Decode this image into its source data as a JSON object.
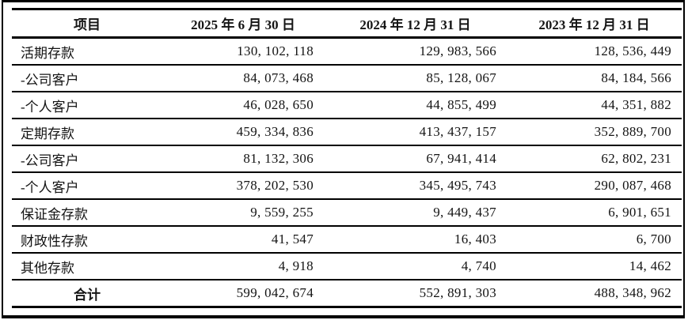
{
  "table": {
    "columns": [
      "项目",
      "2025 年 6 月 30 日",
      "2024 年 12 月 31 日",
      "2023 年 12 月 31 日"
    ],
    "rows": [
      {
        "label": "活期存款",
        "values": [
          "130, 102, 118",
          "129, 983, 566",
          "128, 536, 449"
        ]
      },
      {
        "label": "-公司客户",
        "values": [
          "84, 073, 468",
          "85, 128, 067",
          "84, 184, 566"
        ]
      },
      {
        "label": "-个人客户",
        "values": [
          "46, 028, 650",
          "44, 855, 499",
          "44, 351, 882"
        ]
      },
      {
        "label": "定期存款",
        "values": [
          "459, 334, 836",
          "413, 437, 157",
          "352, 889, 700"
        ]
      },
      {
        "label": "-公司客户",
        "values": [
          "81, 132, 306",
          "67, 941, 414",
          "62, 802, 231"
        ]
      },
      {
        "label": "-个人客户",
        "values": [
          "378, 202, 530",
          "345, 495, 743",
          "290, 087, 468"
        ]
      },
      {
        "label": "保证金存款",
        "values": [
          "9, 559, 255",
          "9, 449, 437",
          "6, 901, 651"
        ]
      },
      {
        "label": "财政性存款",
        "values": [
          "41, 547",
          "16, 403",
          "6, 700"
        ]
      },
      {
        "label": "其他存款",
        "values": [
          "4, 918",
          "4, 740",
          "14, 462"
        ]
      },
      {
        "label": "合计",
        "values": [
          "599, 042, 674",
          "552, 891, 303",
          "488, 348, 962"
        ]
      }
    ]
  },
  "colors": {
    "border": "#000000",
    "text": "#141414",
    "background": "#ffffff"
  }
}
